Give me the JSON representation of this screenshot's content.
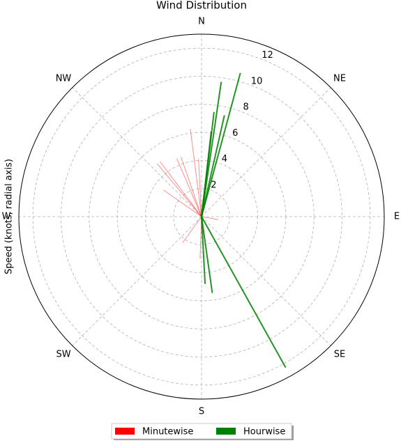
{
  "chart_data": {
    "type": "polar_lines",
    "title": "Wind Distribution",
    "ylabel": "Speed (knots, radial axis)",
    "directions": [
      "N",
      "NE",
      "E",
      "SE",
      "S",
      "SW",
      "W",
      "NW"
    ],
    "rlim": [
      0,
      13
    ],
    "rticks": [
      2,
      4,
      6,
      8,
      10,
      12
    ],
    "grid": true,
    "legend": "bottom",
    "series": [
      {
        "name": "Minutewise",
        "color": "#ff0000",
        "angle": [
          352.7,
          320,
          323,
          337,
          341,
          357,
          305,
          182,
          216,
          100
        ],
        "values": [
          6.3,
          4.9,
          4.9,
          4.5,
          4.5,
          4.1,
          3.3,
          3.0,
          2.3,
          1.2
        ]
      },
      {
        "name": "Hourwise",
        "color": "#008000",
        "angle": [
          15.1,
          8.3,
          6.8,
          12.7,
          6.5,
          150.9,
          172,
          177
        ],
        "values": [
          10.6,
          9.7,
          7.5,
          7.4,
          6.1,
          12.3,
          5.5,
          4.8
        ]
      }
    ]
  }
}
